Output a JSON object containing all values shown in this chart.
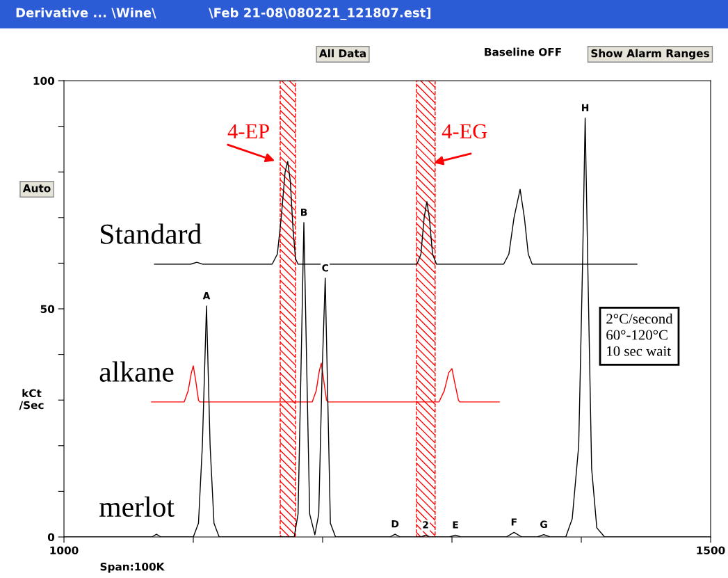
{
  "chart_data": {
    "type": "line",
    "title": "Derivative ... \\Wine\\            \\Feb 21-08\\080221_121807.est]",
    "ylabel": "kCt\n/Sec",
    "xlim": [
      1000,
      1500
    ],
    "ylim": [
      0,
      100
    ],
    "xticks": [
      1000,
      {
        "value": 1100,
        "label": null
      },
      {
        "value": 1200,
        "label": null
      },
      {
        "value": 1300,
        "label": null
      },
      {
        "value": 1400,
        "label": null
      },
      1500
    ],
    "yticks": [
      0,
      {
        "value": 10,
        "label": null
      },
      {
        "value": 20,
        "label": null
      },
      {
        "value": 30,
        "label": null
      },
      {
        "value": 40,
        "label": null
      },
      50,
      {
        "value": 60,
        "label": null
      },
      {
        "value": 70,
        "label": null
      },
      {
        "value": 80,
        "label": null
      },
      {
        "value": 90,
        "label": null
      },
      100
    ],
    "grid": false,
    "series": [
      {
        "name": "Standard",
        "color": "#000000",
        "x": [
          1070,
          1098,
          1102.7,
          1107,
          1161,
          1165,
          1168,
          1171,
          1173,
          1175,
          1177,
          1179,
          1181,
          1273,
          1276,
          1278.5,
          1280.6,
          1282.5,
          1285,
          1288,
          1340,
          1344,
          1348,
          1352.7,
          1356,
          1359,
          1362,
          1443
        ],
        "values": [
          59.8,
          59.8,
          60.2,
          59.8,
          59.8,
          62,
          70,
          80,
          82.3,
          78,
          68,
          61,
          59.8,
          59.8,
          62,
          70,
          73.5,
          70,
          62,
          59.8,
          59.8,
          62,
          70,
          76.2,
          70,
          62,
          59.8,
          59.8
        ]
      },
      {
        "name": "alkane",
        "color": "#ff0000",
        "x": [
          1067.7,
          1093,
          1096,
          1098.5,
          1100,
          1102,
          1104,
          1105,
          1192,
          1195,
          1197.5,
          1199,
          1201,
          1203,
          1204,
          1290,
          1294,
          1297.5,
          1300,
          1302,
          1305,
          1306,
          1336.6
        ],
        "values": [
          29.6,
          29.6,
          32,
          36,
          37.5,
          34,
          30,
          29.6,
          29.6,
          32,
          36.5,
          38.1,
          34,
          30,
          29.6,
          29.6,
          32,
          36,
          36.9,
          34,
          30,
          29.6,
          29.6
        ]
      },
      {
        "name": "merlot",
        "color": "#000000",
        "x": [
          1000,
          1068,
          1071.5,
          1075,
          1100,
          1104,
          1107,
          1110.2,
          1113,
          1116,
          1120,
          1178,
          1181,
          1183.5,
          1185.5,
          1187.5,
          1190,
          1194,
          1197,
          1199.5,
          1202,
          1204,
          1206,
          1210,
          1252,
          1256,
          1260,
          1276,
          1279.6,
          1283,
          1298,
          1302.7,
          1307,
          1342,
          1348,
          1354,
          1366,
          1371,
          1376,
          1388,
          1393,
          1398,
          1401,
          1403,
          1405,
          1408,
          1412,
          1418,
          1500
        ],
        "values": [
          0,
          0,
          0.6,
          0,
          0,
          3,
          20,
          50.6,
          20,
          3,
          0,
          0,
          5,
          40,
          68.9,
          40,
          5,
          0.5,
          5,
          35,
          56.7,
          30,
          3,
          0,
          0,
          0.6,
          0,
          0,
          0.4,
          0,
          0,
          0.4,
          0,
          0,
          1.0,
          0,
          0,
          0.5,
          0,
          0,
          4,
          20,
          60,
          91.8,
          60,
          15,
          2,
          0,
          0
        ]
      }
    ],
    "bands": [
      {
        "axis": "x",
        "from": 1167.2,
        "to": 1179,
        "label": "4-EP",
        "color": "#ff0000"
      },
      {
        "axis": "x",
        "from": 1272.6,
        "to": 1287,
        "label": "4-EG",
        "color": "#ff0000"
      }
    ],
    "annotations": [
      "All Data",
      "Baseline OFF",
      "Show Alarm Ranges",
      "Auto",
      "Span:100K",
      "2°C/second",
      "60°-120°C",
      "10 sec wait",
      {
        "text": "A",
        "x": 1110.2,
        "y": 50.6
      },
      {
        "text": "B",
        "x": 1185.5,
        "y": 68.9
      },
      {
        "text": "C",
        "x": 1202,
        "y": 56.7
      },
      {
        "text": "D",
        "x": 1256,
        "y": 0.6
      },
      {
        "text": "2",
        "x": 1279.6,
        "y": 0.4
      },
      {
        "text": "E",
        "x": 1302.7,
        "y": 0.4
      },
      {
        "text": "F",
        "x": 1348,
        "y": 1.0
      },
      {
        "text": "G",
        "x": 1371,
        "y": 0.5
      },
      {
        "text": "H",
        "x": 1403,
        "y": 91.8
      }
    ]
  }
}
